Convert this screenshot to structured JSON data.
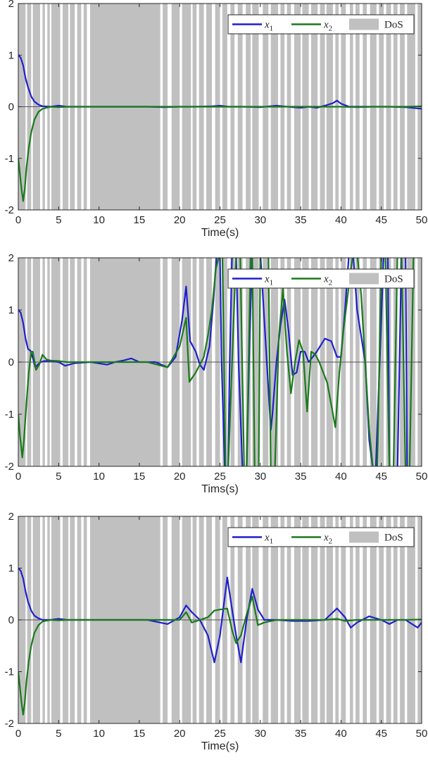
{
  "chart_data": [
    {
      "type": "line",
      "xlabel": "Time(s)",
      "ylabel": "",
      "xlim": [
        0,
        50
      ],
      "ylim": [
        -2,
        2
      ],
      "xticks": [
        "0",
        "5",
        "10",
        "15",
        "20",
        "25",
        "30",
        "35",
        "40",
        "45",
        "50"
      ],
      "yticks": [
        "-2",
        "-1",
        "0",
        "1",
        "2"
      ],
      "grid": false,
      "legend_position": "top-right",
      "legend": [
        "x1",
        "x2",
        "DoS"
      ],
      "dos_shading": "gray bands (DoS intervals)",
      "series": [
        {
          "name": "x1",
          "color": "#1f1fcf",
          "x": [
            0,
            0.3,
            0.6,
            0.9,
            1.2,
            1.6,
            2.0,
            2.5,
            3.0,
            4,
            5,
            6,
            8,
            10,
            12,
            14,
            16,
            18,
            20,
            22,
            24,
            25,
            26,
            28,
            30,
            32,
            34,
            35,
            36,
            37,
            38,
            39,
            39.5,
            40,
            41,
            42,
            44,
            46,
            48,
            50
          ],
          "y": [
            1.0,
            0.95,
            0.8,
            0.55,
            0.38,
            0.2,
            0.1,
            0.04,
            0.01,
            0.0,
            0.02,
            0.0,
            0.0,
            0.0,
            0.0,
            0.0,
            0.0,
            -0.01,
            0.0,
            0.0,
            0.01,
            0.02,
            0.0,
            0.0,
            -0.01,
            0.02,
            -0.01,
            -0.02,
            0.0,
            -0.02,
            0.02,
            0.07,
            0.12,
            0.06,
            0.0,
            0.0,
            0.0,
            0.0,
            -0.01,
            -0.04
          ]
        },
        {
          "name": "x2",
          "color": "#1a7a1a",
          "x": [
            0,
            0.2,
            0.4,
            0.6,
            0.8,
            1.0,
            1.3,
            1.6,
            2.0,
            2.5,
            3.0,
            4,
            5,
            6,
            8,
            10,
            12,
            14,
            16,
            18,
            20,
            22,
            24,
            26,
            28,
            30,
            32,
            34,
            36,
            38,
            40,
            42,
            44,
            46,
            48,
            50
          ],
          "y": [
            -1.0,
            -1.3,
            -1.6,
            -1.83,
            -1.6,
            -1.2,
            -0.8,
            -0.5,
            -0.25,
            -0.1,
            -0.04,
            0.0,
            -0.01,
            0.0,
            0.0,
            0.0,
            0.0,
            0.0,
            0.0,
            0.0,
            0.0,
            0.0,
            0.0,
            0.0,
            0.0,
            0.0,
            0.0,
            0.0,
            0.0,
            0.0,
            0.0,
            -0.01,
            0.0,
            0.0,
            0.0,
            0.01
          ]
        }
      ]
    },
    {
      "type": "line",
      "xlabel": "Tims(s)",
      "ylabel": "",
      "xlim": [
        0,
        50
      ],
      "ylim": [
        -2,
        2
      ],
      "xticks": [
        "0",
        "5",
        "10",
        "15",
        "20",
        "25",
        "30",
        "35",
        "40",
        "45",
        "50"
      ],
      "yticks": [
        "-2",
        "-1",
        "0",
        "1",
        "2"
      ],
      "grid": false,
      "legend_position": "top-right",
      "legend": [
        "x1",
        "x2",
        "DoS"
      ],
      "dos_shading": "gray bands (DoS intervals)",
      "series": [
        {
          "name": "x1",
          "color": "#1f1fcf",
          "x": [
            0,
            0.3,
            0.6,
            0.9,
            1.2,
            1.5,
            1.8,
            2.1,
            2.4,
            2.8,
            3.2,
            4,
            5,
            5.8,
            7,
            9,
            11,
            12,
            13,
            14,
            15,
            17,
            18.5,
            19.5,
            20.3,
            20.8,
            21.3,
            22,
            22.5,
            23,
            23.7,
            24.2,
            24.6,
            25.0,
            25.2,
            25.6,
            26.0,
            26.2,
            26.5,
            27.0,
            27.3,
            27.8,
            28.3,
            28.6,
            29.0,
            30.0,
            31.3,
            31.5,
            32.0,
            32.5,
            33.0,
            33.5,
            34.0,
            34.5,
            35.0,
            35.5,
            36.0,
            37.0,
            38.0,
            38.8,
            39.5,
            40.0,
            40.5,
            41.0,
            41.5,
            42.0,
            43.0,
            43.5,
            44.0,
            44.3,
            44.8,
            45.3,
            45.8,
            46.0,
            46.5,
            47.0,
            47.5,
            48.0,
            48.2,
            48.5
          ],
          "y": [
            1.0,
            0.95,
            0.75,
            0.45,
            0.25,
            0.22,
            0.08,
            -0.1,
            -0.05,
            0.0,
            0.02,
            0.02,
            0.0,
            -0.07,
            -0.02,
            0.0,
            -0.05,
            0.0,
            0.03,
            0.07,
            0.0,
            0.0,
            -0.1,
            0.1,
            0.8,
            1.45,
            0.4,
            0.2,
            -0.05,
            -0.15,
            0.3,
            1.2,
            2.1,
            2.0,
            0.0,
            -2.1,
            -2.1,
            0.0,
            2.1,
            2.1,
            0.0,
            -2.1,
            -2.1,
            0.0,
            2.1,
            2.1,
            -1.3,
            -1.0,
            0.0,
            0.7,
            1.2,
            0.6,
            -0.25,
            -0.2,
            0.2,
            0.2,
            0.0,
            0.2,
            0.45,
            0.4,
            0.1,
            0.1,
            1.0,
            2.1,
            2.1,
            1.0,
            0.0,
            -1.5,
            -2.1,
            -2.1,
            0.0,
            2.1,
            2.1,
            -2.1,
            -2.1,
            -2.1,
            2.1,
            2.1,
            -2.1,
            -2.1
          ]
        },
        {
          "name": "x2",
          "color": "#1a7a1a",
          "x": [
            0,
            0.2,
            0.5,
            0.7,
            1.0,
            1.3,
            1.6,
            1.8,
            2.2,
            2.6,
            3.0,
            3.5,
            4,
            5,
            6,
            8,
            10,
            12,
            14,
            16,
            18.5,
            20,
            20.8,
            21.2,
            22,
            23,
            23.5,
            24,
            24.5,
            25.0,
            25.3,
            25.7,
            26.0,
            26.5,
            27.0,
            27.5,
            28.0,
            28.3,
            28.8,
            29.0,
            29.3,
            29.8,
            30.0,
            31.0,
            31.3,
            31.8,
            32.3,
            32.8,
            33.3,
            33.8,
            34.3,
            34.8,
            35.3,
            35.8,
            36.3,
            36.8,
            37.3,
            38.3,
            39.3,
            39.8,
            40.3,
            41.0,
            41.5,
            42.0,
            42.5,
            43.0,
            43.5,
            44.0,
            44.5,
            45.0,
            45.5,
            46.0,
            46.5,
            47.0,
            47.5,
            48.0,
            48.5,
            49.0,
            49.5,
            50.0
          ],
          "y": [
            -1.0,
            -1.4,
            -1.83,
            -1.5,
            -0.8,
            -0.2,
            0.2,
            0.2,
            -0.15,
            -0.05,
            0.14,
            0.05,
            0.03,
            0.02,
            0.0,
            0.0,
            0.0,
            0.0,
            0.0,
            0.0,
            -0.1,
            0.3,
            0.85,
            -0.38,
            -0.2,
            0.1,
            0.5,
            1.0,
            1.8,
            2.1,
            2.1,
            -2.1,
            -2.1,
            0.0,
            2.1,
            2.1,
            -2.1,
            -2.1,
            2.1,
            2.1,
            -2.1,
            -2.1,
            2.1,
            2.1,
            -2.1,
            -2.1,
            0.5,
            1.4,
            0.2,
            -0.6,
            0.0,
            0.42,
            0.2,
            -0.95,
            0.2,
            0.15,
            0.0,
            -0.4,
            -1.25,
            -0.2,
            0.6,
            1.5,
            2.1,
            2.1,
            1.3,
            0.0,
            -1.3,
            -2.1,
            -2.1,
            2.1,
            2.1,
            -2.1,
            -2.1,
            2.1,
            2.1,
            -2.1,
            -2.1,
            2.1,
            2.1,
            2.1
          ]
        }
      ]
    },
    {
      "type": "line",
      "xlabel": "Time(s)",
      "ylabel": "",
      "xlim": [
        0,
        50
      ],
      "ylim": [
        -2,
        2
      ],
      "xticks": [
        "0",
        "5",
        "10",
        "15",
        "20",
        "25",
        "30",
        "35",
        "40",
        "45",
        "50"
      ],
      "yticks": [
        "-2",
        "-1",
        "0",
        "1",
        "2"
      ],
      "grid": false,
      "legend_position": "top-right",
      "legend": [
        "x1",
        "x2",
        "DoS"
      ],
      "dos_shading": "gray bands (DoS intervals)",
      "series": [
        {
          "name": "x1",
          "color": "#1f1fcf",
          "x": [
            0,
            0.3,
            0.6,
            0.9,
            1.2,
            1.6,
            2.0,
            2.5,
            3.0,
            4,
            5,
            6,
            8,
            10,
            12,
            14,
            16,
            18.5,
            20,
            20.8,
            21.5,
            22.5,
            23.5,
            24.3,
            25.0,
            25.9,
            26.5,
            27.0,
            27.6,
            28.3,
            29.0,
            29.7,
            30.5,
            32,
            34,
            36,
            38,
            39.5,
            40.5,
            41.2,
            42,
            43.5,
            45,
            46,
            47,
            48,
            49.5,
            50
          ],
          "y": [
            1.0,
            0.95,
            0.8,
            0.55,
            0.35,
            0.18,
            0.08,
            0.03,
            0.0,
            0.0,
            0.02,
            0.0,
            0.0,
            0.0,
            0.0,
            0.0,
            0.0,
            -0.08,
            0.05,
            0.28,
            0.15,
            0.0,
            -0.3,
            -0.82,
            -0.3,
            0.82,
            0.2,
            -0.3,
            -0.82,
            0.0,
            0.6,
            0.2,
            0.0,
            0.0,
            -0.02,
            -0.02,
            0.0,
            0.22,
            0.05,
            -0.15,
            -0.05,
            0.07,
            0.0,
            -0.08,
            0.0,
            0.0,
            -0.15,
            -0.05
          ]
        },
        {
          "name": "x2",
          "color": "#1a7a1a",
          "x": [
            0,
            0.2,
            0.4,
            0.6,
            0.8,
            1.0,
            1.3,
            1.6,
            2.0,
            2.5,
            3.0,
            4,
            5,
            6,
            8,
            10,
            12,
            14,
            16,
            18.5,
            20,
            20.8,
            21.5,
            22.5,
            23.5,
            24.3,
            25.0,
            25.9,
            26.5,
            27.0,
            27.6,
            28.3,
            29.0,
            29.7,
            30.5,
            32,
            34,
            36,
            38,
            39.5,
            40.5,
            42,
            44,
            46,
            48,
            50
          ],
          "y": [
            -1.0,
            -1.3,
            -1.6,
            -1.83,
            -1.6,
            -1.2,
            -0.8,
            -0.5,
            -0.25,
            -0.1,
            -0.03,
            0.0,
            -0.01,
            0.0,
            0.0,
            0.0,
            0.0,
            0.0,
            0.0,
            0.0,
            0.0,
            0.15,
            -0.05,
            0.0,
            0.05,
            0.18,
            0.2,
            0.22,
            -0.2,
            -0.45,
            -0.3,
            0.1,
            0.45,
            -0.1,
            -0.05,
            0.0,
            0.0,
            0.0,
            0.0,
            0.02,
            -0.02,
            0.0,
            0.0,
            0.0,
            0.0,
            0.01
          ]
        }
      ]
    }
  ]
}
